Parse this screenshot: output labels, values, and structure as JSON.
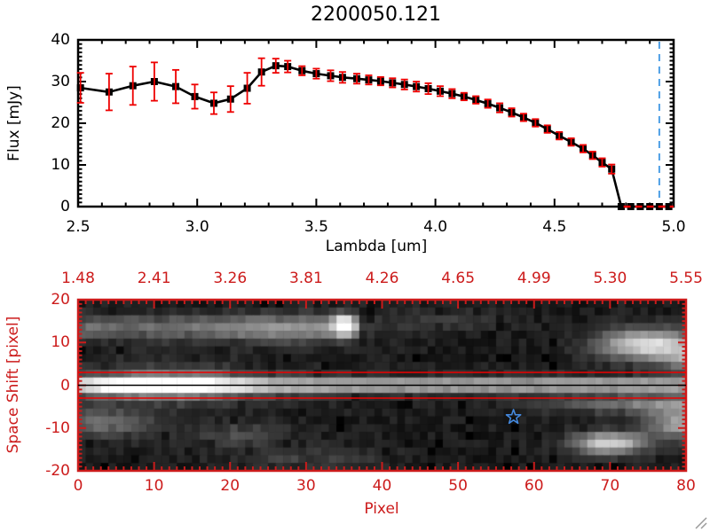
{
  "window": {
    "background": "#ffffff",
    "resize_grip": "nwse-resize-grip"
  },
  "colors": {
    "frame_black": "#000000",
    "axis_red": "#cc1b1b",
    "error_red": "#ee0000",
    "zero_line_red": "#ee0000",
    "wavelength_marker_blue": "#4d9fe6",
    "star_blue": "#4488dd",
    "image_background": "#000000"
  },
  "chart_data": [
    {
      "type": "line",
      "title": "2200050.121",
      "xlabel": "Lambda [um]",
      "ylabel": "Flux [mJy]",
      "xlim": [
        2.5,
        5.0
      ],
      "ylim": [
        0,
        40
      ],
      "xticks": [
        2.5,
        3.0,
        3.5,
        4.0,
        4.5,
        5.0
      ],
      "xtick_labels": [
        "2.5",
        "3.0",
        "3.5",
        "4.0",
        "4.5",
        "5.0"
      ],
      "xminor_step": 0.1,
      "yticks": [
        0,
        10,
        20,
        30,
        40
      ],
      "ytick_labels": [
        "0",
        "10",
        "20",
        "30",
        "40"
      ],
      "yminor_step": 1,
      "grid": false,
      "marker": "filled-square",
      "line_color": "#000000",
      "series": [
        {
          "name": "flux",
          "x": [
            2.51,
            2.63,
            2.73,
            2.82,
            2.91,
            2.99,
            3.07,
            3.14,
            3.21,
            3.27,
            3.33,
            3.38,
            3.44,
            3.5,
            3.56,
            3.61,
            3.67,
            3.72,
            3.77,
            3.82,
            3.87,
            3.92,
            3.97,
            4.02,
            4.07,
            4.12,
            4.17,
            4.22,
            4.27,
            4.32,
            4.37,
            4.42,
            4.47,
            4.52,
            4.57,
            4.62,
            4.66,
            4.7,
            4.74,
            4.78,
            4.82,
            4.86,
            4.9,
            4.94,
            4.98
          ],
          "y": [
            28.5,
            27.5,
            29.0,
            30.0,
            28.8,
            26.4,
            24.8,
            25.8,
            28.4,
            32.3,
            33.8,
            33.6,
            32.6,
            31.9,
            31.4,
            31.0,
            30.7,
            30.4,
            30.1,
            29.7,
            29.3,
            28.8,
            28.3,
            27.7,
            27.1,
            26.4,
            25.6,
            24.7,
            23.7,
            22.6,
            21.4,
            20.1,
            18.6,
            17.0,
            15.5,
            13.9,
            12.3,
            10.6,
            9.0,
            0,
            0,
            0,
            0,
            0,
            0
          ],
          "yerr": [
            3.6,
            4.4,
            4.6,
            4.6,
            4.0,
            2.9,
            2.6,
            3.1,
            3.7,
            3.3,
            1.7,
            1.4,
            1.1,
            1.2,
            1.3,
            1.3,
            1.2,
            1.1,
            1.0,
            1.1,
            1.2,
            1.2,
            1.3,
            1.2,
            1.1,
            0.9,
            0.9,
            1.0,
            1.1,
            1.0,
            0.9,
            0.9,
            0.9,
            0.9,
            0.9,
            0.9,
            0.9,
            1.0,
            1.1,
            0,
            0,
            0,
            0,
            0,
            0
          ]
        }
      ],
      "zero_flux_dashed_line": {
        "y": 0,
        "x_from": 4.79,
        "x_to": 5.0,
        "color": "#ee0000",
        "style": "dashed"
      },
      "vertical_dashed_line": {
        "x": 4.94,
        "color": "#4d9fe6",
        "style": "dashed"
      }
    },
    {
      "type": "heatmap",
      "xlabel": "Pixel",
      "ylabel": "Space Shift [pixel]",
      "xlim": [
        0,
        80
      ],
      "ylim": [
        -20,
        20
      ],
      "xticks": [
        0,
        10,
        20,
        30,
        40,
        50,
        60,
        70,
        80
      ],
      "xtick_labels": [
        "0",
        "10",
        "20",
        "30",
        "40",
        "50",
        "60",
        "70",
        "80"
      ],
      "xminor_step": 1,
      "yticks": [
        -20,
        -10,
        0,
        10,
        20
      ],
      "ytick_labels": [
        "-20",
        "-10",
        "0",
        "10",
        "20"
      ],
      "yminor_step": 1,
      "top_axis_labels": [
        "1.48",
        "2.41",
        "3.26",
        "3.81",
        "4.26",
        "4.65",
        "4.99",
        "5.30",
        "5.55"
      ],
      "grid": false,
      "aperture_lines_shift": [
        3,
        -3
      ],
      "trace_line_shift": 0,
      "star_marker": {
        "pixel": 57.3,
        "shift": -7.45
      },
      "image_grid": {
        "cols": 80,
        "rows": 22
      },
      "noise": {
        "seed": 123457,
        "base": 0.03,
        "amp": 0.09,
        "dark_fraction": 0.12,
        "gamma": 0.85
      },
      "features": [
        {
          "name": "central-trace-band",
          "type": "ridge",
          "s": 0,
          "ss": 1.7,
          "a": 0.62,
          "p0": 0,
          "p1": 80
        },
        {
          "name": "central-bright-core",
          "type": "blob",
          "p": 11,
          "s": 0,
          "sp": 9,
          "ss": 2.4,
          "a": 0.6
        },
        {
          "name": "central-halo",
          "type": "blob",
          "p": 12,
          "s": 0,
          "sp": 15,
          "ss": 5.0,
          "a": 0.22
        },
        {
          "name": "upper-left-band",
          "type": "ridge",
          "s": 13.5,
          "ss": 2.8,
          "a": 0.3,
          "p0": 0,
          "p1": 37
        },
        {
          "name": "upper-band-hotspot",
          "type": "blob",
          "p": 35,
          "s": 14,
          "sp": 1.4,
          "ss": 2.2,
          "a": 0.95
        },
        {
          "name": "upper-left-glow",
          "type": "blob",
          "p": 27,
          "s": 13,
          "sp": 9,
          "ss": 3.2,
          "a": 0.18
        },
        {
          "name": "upper-mid-faint",
          "type": "blob",
          "p": 47,
          "s": 15,
          "sp": 8,
          "ss": 2.5,
          "a": 0.1
        },
        {
          "name": "lower-left-diffuse",
          "type": "blob",
          "p": 3,
          "s": -9,
          "sp": 7,
          "ss": 3.2,
          "a": 0.28
        },
        {
          "name": "lower-left-blob",
          "type": "blob",
          "p": 21,
          "s": -11.5,
          "sp": 6,
          "ss": 2.5,
          "a": 0.18
        },
        {
          "name": "bottom-mid-faint",
          "type": "blob",
          "p": 30,
          "s": -17,
          "sp": 10,
          "ss": 2.5,
          "a": 0.12
        },
        {
          "name": "upper-right-blob",
          "type": "blob",
          "p": 75,
          "s": 9.5,
          "sp": 6,
          "ss": 3.5,
          "a": 0.8
        },
        {
          "name": "upper-right-edge",
          "type": "blob",
          "p": 81,
          "s": 6,
          "sp": 4,
          "ss": 3.0,
          "a": 0.45
        },
        {
          "name": "lower-right-blob",
          "type": "blob",
          "p": 70,
          "s": -13.5,
          "sp": 4.5,
          "ss": 2.5,
          "a": 0.75
        },
        {
          "name": "lower-right-edge",
          "type": "blob",
          "p": 80,
          "s": -9,
          "sp": 5,
          "ss": 3.5,
          "a": 0.55
        },
        {
          "name": "right-sub-band",
          "type": "blob",
          "p": 78,
          "s": -4.5,
          "sp": 14,
          "ss": 2.0,
          "a": 0.4
        }
      ]
    }
  ]
}
